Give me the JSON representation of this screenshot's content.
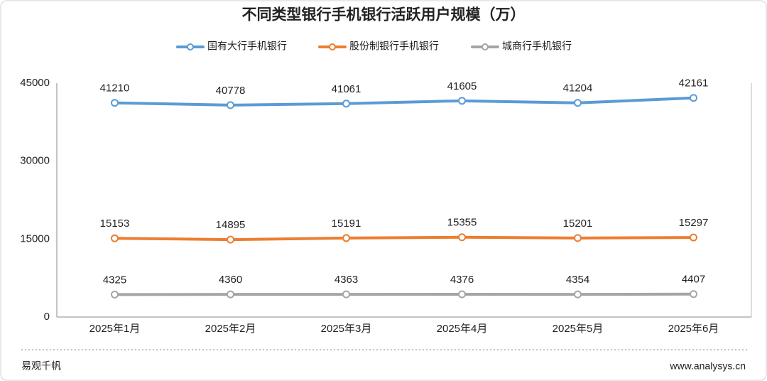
{
  "chart_data": {
    "type": "line",
    "title": "不同类型银行手机银行活跃用户规模（万）",
    "categories": [
      "2025年1月",
      "2025年2月",
      "2025年3月",
      "2025年4月",
      "2025年5月",
      "2025年6月"
    ],
    "series": [
      {
        "name": "国有大行手机银行",
        "color": "#5b9bd5",
        "values": [
          41210,
          40778,
          41061,
          41605,
          41204,
          42161
        ]
      },
      {
        "name": "股份制银行手机银行",
        "color": "#ed7d31",
        "values": [
          15153,
          14895,
          15191,
          15355,
          15201,
          15297
        ]
      },
      {
        "name": "城商行手机银行",
        "color": "#a5a5a5",
        "values": [
          4325,
          4360,
          4363,
          4376,
          4354,
          4407
        ]
      }
    ],
    "ylim": [
      0,
      45000
    ],
    "yticks": [
      0,
      15000,
      30000,
      45000
    ],
    "grid": false,
    "legend": "top"
  },
  "footer": {
    "source": "易观千帆",
    "website": "www.analysys.cn"
  }
}
